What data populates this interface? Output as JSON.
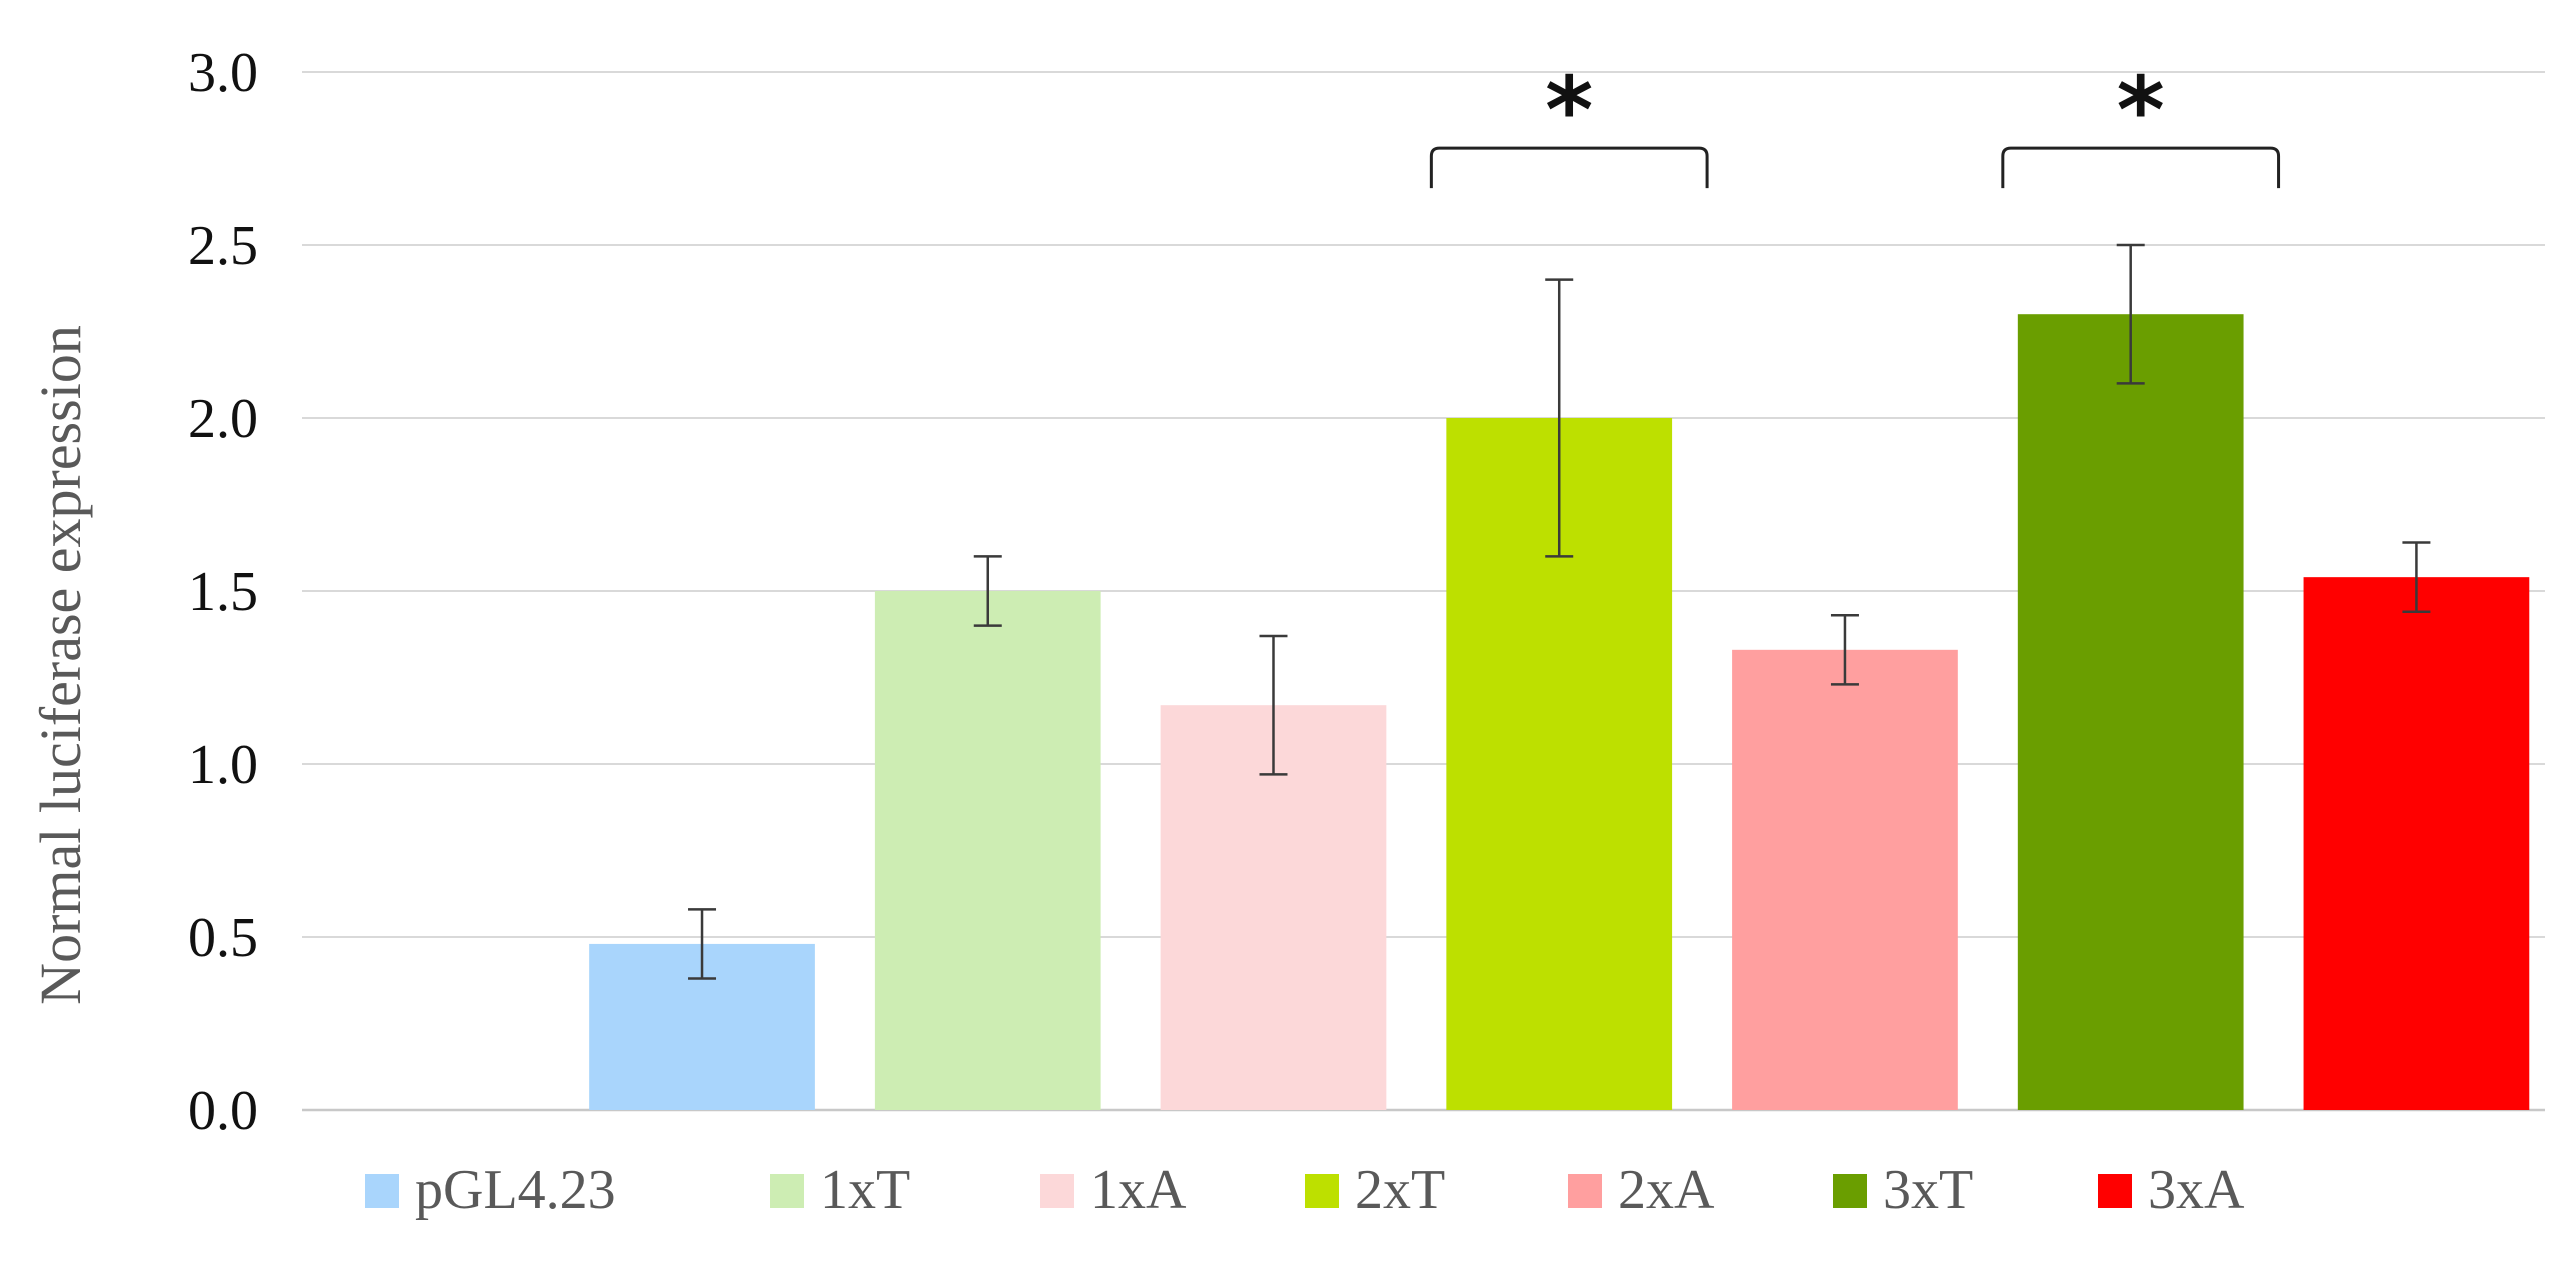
{
  "chart_data": {
    "type": "bar",
    "title": "",
    "xlabel": "",
    "ylabel": "Normal luciferase expression",
    "ylim": [
      0,
      3.0
    ],
    "yticks": [
      "0.0",
      "0.5",
      "1.0",
      "1.5",
      "2.0",
      "2.5",
      "3.0"
    ],
    "grid": true,
    "legend_position": "bottom",
    "categories": [
      "pGL4.23",
      "1xT",
      "1xA",
      "2xT",
      "2xA",
      "3xT",
      "3xA"
    ],
    "series": [
      {
        "name": "pGL4.23",
        "value": 0.48,
        "error": 0.1,
        "color": "#a9d5fc"
      },
      {
        "name": "1xT",
        "value": 1.5,
        "error": 0.1,
        "color": "#cdedb3"
      },
      {
        "name": "1xA",
        "value": 1.17,
        "error": 0.2,
        "color": "#fcd8d9"
      },
      {
        "name": "2xT",
        "value": 2.0,
        "error": 0.4,
        "color": "#bde000"
      },
      {
        "name": "2xA",
        "value": 1.33,
        "error": 0.1,
        "color": "#ff9f9f"
      },
      {
        "name": "3xT",
        "value": 2.3,
        "error": 0.2,
        "color": "#6a9e00"
      },
      {
        "name": "3xA",
        "value": 1.54,
        "error": 0.1,
        "color": "#ff0000"
      }
    ],
    "annotations": [
      {
        "label": "*",
        "from": "2xT",
        "to": "2xA",
        "level": 2.78
      },
      {
        "label": "*",
        "from": "3xT",
        "to": "3xA",
        "level": 2.78
      }
    ]
  }
}
